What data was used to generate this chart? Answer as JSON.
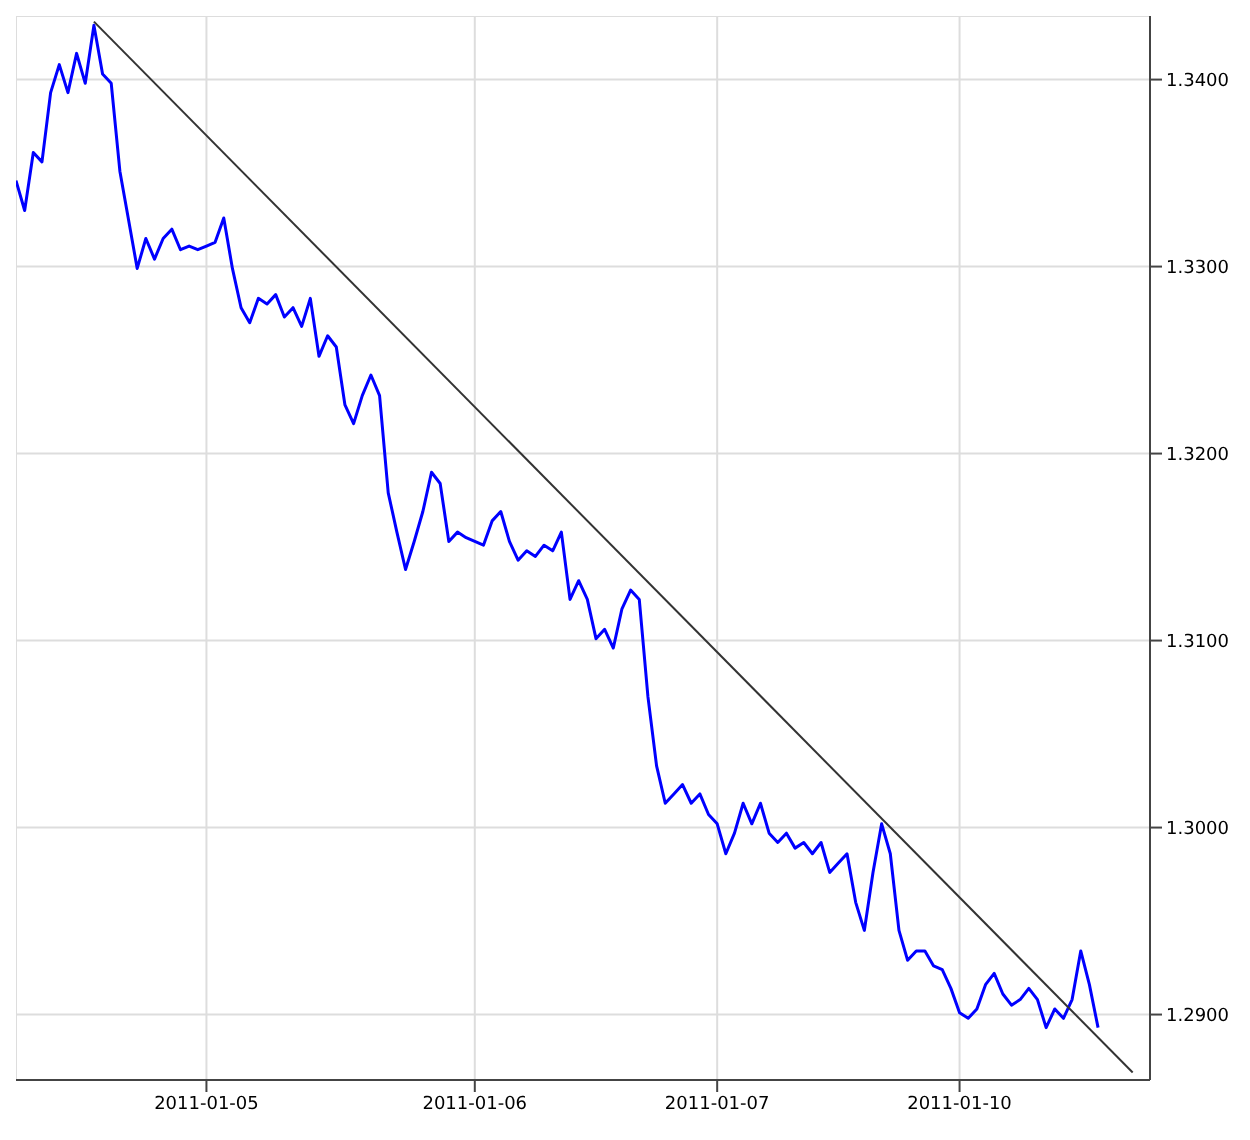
{
  "chart_data": {
    "type": "line",
    "categories": [
      null,
      null,
      null,
      null,
      null,
      null,
      null,
      null,
      null,
      null,
      null,
      null,
      null,
      null,
      null,
      null,
      null,
      null,
      null,
      null,
      null,
      null,
      "2011-01-05",
      null,
      null,
      null,
      null,
      null,
      null,
      null,
      null,
      null,
      null,
      null,
      null,
      null,
      null,
      null,
      null,
      null,
      null,
      null,
      null,
      null,
      null,
      null,
      null,
      null,
      null,
      null,
      null,
      null,
      null,
      "2011-01-06",
      null,
      null,
      null,
      null,
      null,
      null,
      null,
      null,
      null,
      null,
      null,
      null,
      null,
      null,
      null,
      null,
      null,
      null,
      null,
      null,
      null,
      null,
      null,
      null,
      null,
      null,
      null,
      "2011-01-07",
      null,
      null,
      null,
      null,
      null,
      null,
      null,
      null,
      null,
      null,
      null,
      null,
      null,
      null,
      null,
      null,
      null,
      null,
      null,
      null,
      null,
      null,
      null,
      null,
      null,
      null,
      null,
      "2011-01-10",
      null,
      null,
      null,
      null,
      null,
      null,
      null,
      null,
      null,
      null,
      null,
      null,
      null,
      null,
      null,
      null,
      null,
      null,
      null,
      null,
      null,
      null
    ],
    "ylim": [
      1.2865,
      1.3434
    ],
    "yticks": [
      {
        "value": 1.29,
        "label": "1.2900"
      },
      {
        "value": 1.3,
        "label": "1.3000"
      },
      {
        "value": 1.31,
        "label": "1.3100"
      },
      {
        "value": 1.32,
        "label": "1.3200"
      },
      {
        "value": 1.33,
        "label": "1.3300"
      },
      {
        "value": 1.34,
        "label": "1.3400"
      }
    ],
    "grid": true,
    "legend": false,
    "marker": "none",
    "line_style": "solid",
    "series": [
      {
        "color": "#0000ff",
        "values": [
          1.3346,
          1.333,
          1.3361,
          1.3356,
          1.3393,
          1.3408,
          1.3393,
          1.3414,
          1.3398,
          1.3429,
          1.3403,
          1.3398,
          1.3351,
          1.3325,
          1.3299,
          1.3315,
          1.3304,
          1.3315,
          1.332,
          1.3309,
          1.3311,
          1.3309,
          1.3311,
          1.3313,
          1.3326,
          1.3299,
          1.3278,
          1.327,
          1.3283,
          1.328,
          1.3285,
          1.3273,
          1.3278,
          1.3268,
          1.3283,
          1.3252,
          1.3263,
          1.3257,
          1.3226,
          1.3216,
          1.3231,
          1.3242,
          1.3231,
          1.3179,
          1.3158,
          1.3138,
          1.3153,
          1.3169,
          1.319,
          1.3184,
          1.3153,
          1.3158,
          1.3155,
          1.3153,
          1.3151,
          1.3164,
          1.3169,
          1.3153,
          1.3143,
          1.3148,
          1.3145,
          1.3151,
          1.3148,
          1.3158,
          1.3122,
          1.3132,
          1.3122,
          1.3101,
          1.3106,
          1.3096,
          1.3117,
          1.3127,
          1.3122,
          1.307,
          1.3033,
          1.3013,
          1.3018,
          1.3023,
          1.3013,
          1.3018,
          1.3007,
          1.3002,
          1.2986,
          1.2997,
          1.3013,
          1.3002,
          1.3013,
          1.2997,
          1.2992,
          1.2997,
          1.2989,
          1.2992,
          1.2986,
          1.2992,
          1.2976,
          1.2981,
          1.2986,
          1.296,
          1.2945,
          1.2976,
          1.3002,
          1.2986,
          1.2945,
          1.2929,
          1.2934,
          1.2934,
          1.2926,
          1.2924,
          1.2914,
          1.2901,
          1.2898,
          1.2903,
          1.2916,
          1.2922,
          1.2911,
          1.2905,
          1.2908,
          1.2914,
          1.2908,
          1.2893,
          1.2903,
          1.2898,
          1.2908,
          1.2934,
          1.2916,
          1.2893,
          null,
          null,
          null,
          null,
          null,
          null
        ]
      },
      {
        "color": "#333333",
        "values": [
          null,
          null,
          null,
          null,
          null,
          null,
          null,
          null,
          null,
          1.3431,
          null,
          null,
          null,
          null,
          null,
          null,
          null,
          null,
          null,
          null,
          null,
          null,
          null,
          null,
          null,
          null,
          null,
          null,
          null,
          null,
          null,
          null,
          null,
          null,
          null,
          null,
          null,
          null,
          null,
          null,
          null,
          null,
          null,
          null,
          null,
          null,
          null,
          null,
          null,
          null,
          null,
          null,
          null,
          null,
          null,
          null,
          null,
          null,
          null,
          null,
          null,
          null,
          null,
          null,
          null,
          null,
          null,
          null,
          null,
          null,
          null,
          null,
          null,
          null,
          null,
          null,
          null,
          null,
          null,
          null,
          null,
          null,
          null,
          null,
          null,
          null,
          null,
          null,
          null,
          null,
          null,
          null,
          null,
          null,
          null,
          null,
          null,
          null,
          null,
          null,
          null,
          null,
          null,
          null,
          null,
          null,
          null,
          null,
          null,
          null,
          null,
          null,
          null,
          null,
          null,
          null,
          null,
          null,
          null,
          null,
          null,
          null,
          null,
          null,
          null,
          null,
          null,
          null,
          null,
          1.2869,
          null,
          null
        ]
      }
    ]
  }
}
